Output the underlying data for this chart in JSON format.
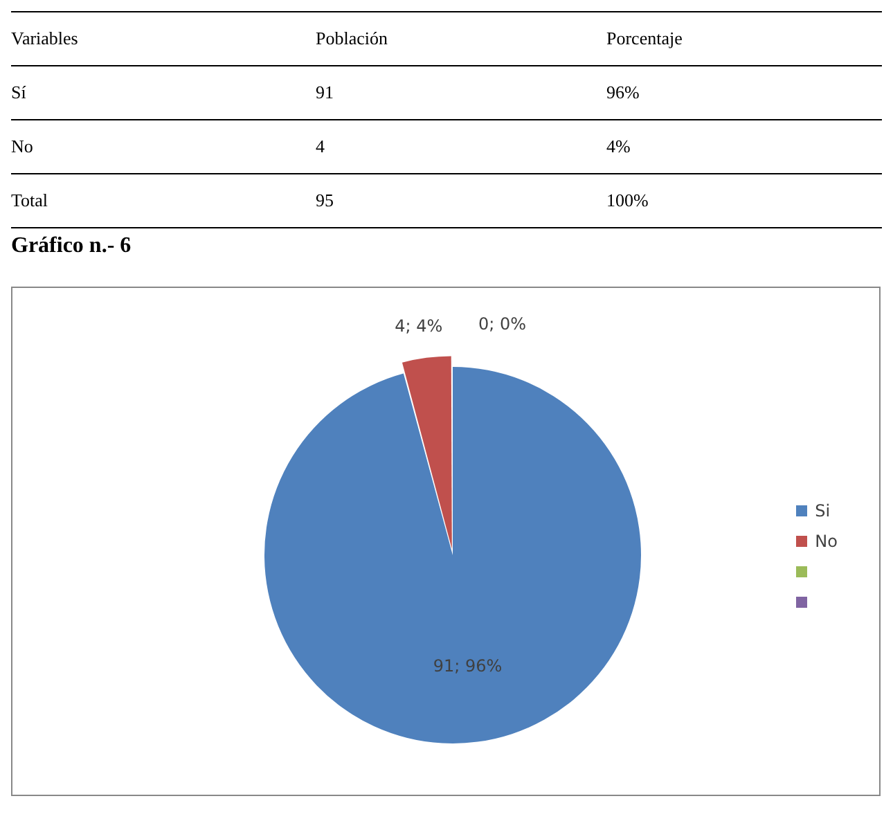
{
  "chart_data": {
    "type": "pie",
    "title": "Gráfico n.- 6",
    "categories": [
      "Si",
      "No",
      null,
      null
    ],
    "values": [
      91,
      4,
      0,
      0
    ],
    "colors": [
      "#4f81bd",
      "#c0504d",
      "#9bbb59",
      "#8064a2"
    ],
    "value_labels": [
      "91; 96%",
      "4; 4%",
      "0; 0%",
      null
    ],
    "legend": "right",
    "annotations": [
      "Variables",
      "Población",
      "Porcentaje",
      "Sí",
      "91",
      "96%",
      "No",
      "4",
      "4%",
      "Total",
      "95",
      "100%"
    ]
  }
}
